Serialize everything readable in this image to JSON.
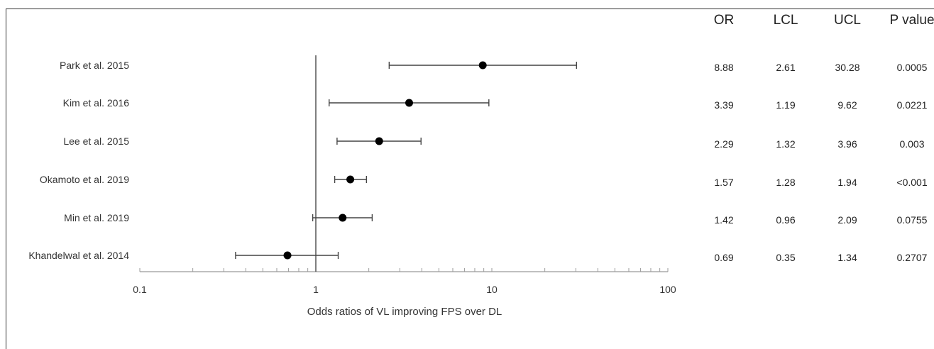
{
  "chart_data": {
    "type": "forest",
    "xlabel": "Odds ratios of VL improving FPS over DL",
    "x_scale": "log",
    "xlim": [
      0.1,
      100
    ],
    "x_ticks": [
      "0.1",
      "1",
      "10",
      "100"
    ],
    "reference_line": 1,
    "studies": [
      {
        "label": "Park et al. 2015",
        "or": 8.88,
        "lcl": 2.61,
        "ucl": 30.28,
        "p": "0.0005"
      },
      {
        "label": "Kim et al. 2016",
        "or": 3.39,
        "lcl": 1.19,
        "ucl": 9.62,
        "p": "0.0221"
      },
      {
        "label": "Lee et al. 2015",
        "or": 2.29,
        "lcl": 1.32,
        "ucl": 3.96,
        "p": "0.003"
      },
      {
        "label": "Okamoto et al. 2019",
        "or": 1.57,
        "lcl": 1.28,
        "ucl": 1.94,
        "p": "<0.001"
      },
      {
        "label": "Min et al. 2019",
        "or": 1.42,
        "lcl": 0.96,
        "ucl": 2.09,
        "p": "0.0755"
      },
      {
        "label": "Khandelwal et al. 2014",
        "or": 0.69,
        "lcl": 0.35,
        "ucl": 1.34,
        "p": "0.2707"
      }
    ],
    "table": {
      "headers": [
        "OR",
        "LCL",
        "UCL",
        "P value"
      ],
      "rows": [
        [
          "8.88",
          "2.61",
          "30.28",
          "0.0005"
        ],
        [
          "3.39",
          "1.19",
          "9.62",
          "0.0221"
        ],
        [
          "2.29",
          "1.32",
          "3.96",
          "0.003"
        ],
        [
          "1.57",
          "1.28",
          "1.94",
          "<0.001"
        ],
        [
          "1.42",
          "0.96",
          "2.09",
          "0.0755"
        ],
        [
          "0.69",
          "0.35",
          "1.34",
          "0.2707"
        ]
      ]
    },
    "grid": false
  }
}
